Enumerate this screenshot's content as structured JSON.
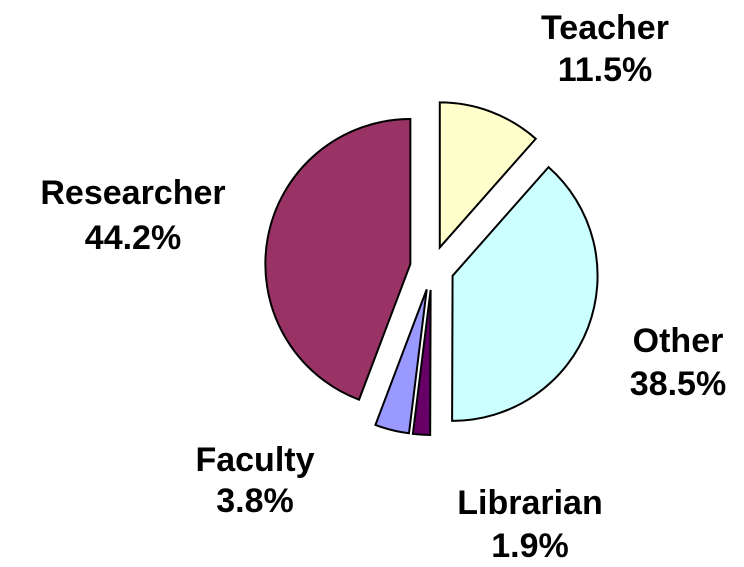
{
  "chart_data": {
    "type": "pie",
    "categories": [
      "Teacher",
      "Other",
      "Librarian",
      "Faculty",
      "Researcher"
    ],
    "values": [
      11.5,
      38.5,
      1.9,
      3.8,
      44.2
    ],
    "value_labels": [
      "11.5%",
      "38.5%",
      "1.9%",
      "3.8%",
      "44.2%"
    ],
    "colors": [
      "#ffffcc",
      "#ccffff",
      "#660066",
      "#9999ff",
      "#993366"
    ],
    "exploded": true
  }
}
